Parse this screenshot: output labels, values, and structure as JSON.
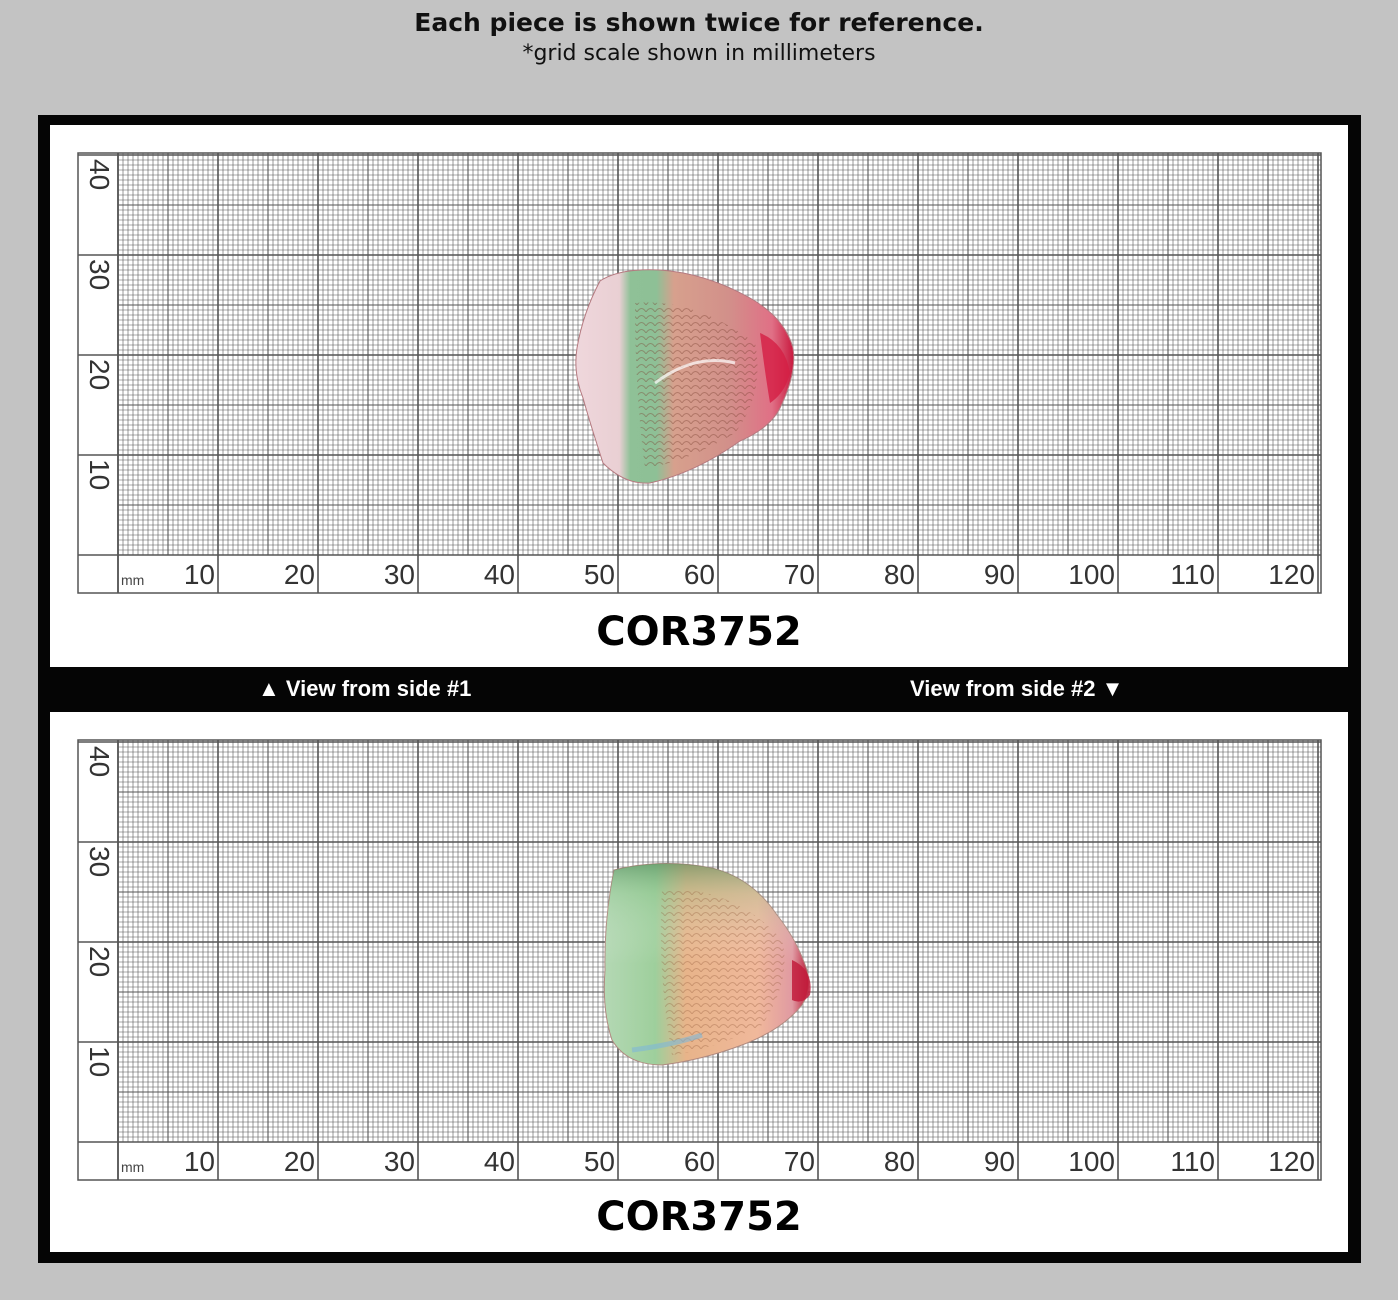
{
  "header": {
    "title": "Each piece is shown twice for reference.",
    "subtitle": "*grid scale shown in millimeters"
  },
  "grid": {
    "unit_label": "mm",
    "x_ticks": [
      "10",
      "20",
      "30",
      "40",
      "50",
      "60",
      "70",
      "80",
      "90",
      "100",
      "110",
      "120"
    ],
    "y_ticks": [
      "10",
      "20",
      "30",
      "40"
    ]
  },
  "views": {
    "side1_label": "▲ View from side #1",
    "side2_label": "View from side #2 ▼",
    "view1_sku": "COR3752",
    "view2_sku": "COR3752"
  },
  "colors": {
    "background": "#c3c3c3",
    "frame": "#050505",
    "grid_line": "#555555"
  },
  "icons": [
    "triangle-up-icon",
    "triangle-down-icon"
  ]
}
